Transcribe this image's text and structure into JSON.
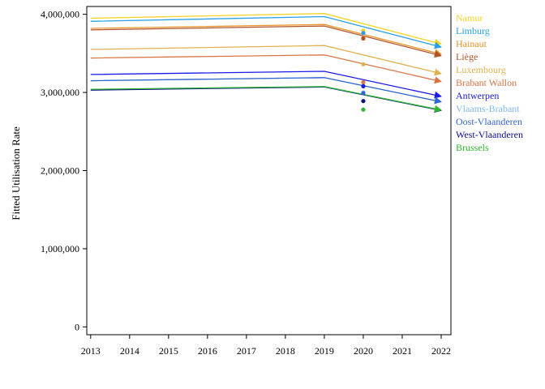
{
  "chart_data": {
    "type": "line",
    "title": "",
    "xlabel": "",
    "ylabel": "Fitted Utilisation Rate",
    "x_ticks": [
      "2013",
      "2014",
      "2015",
      "2016",
      "2017",
      "2018",
      "2019",
      "2020",
      "2021",
      "2022"
    ],
    "y_ticks": [
      "0",
      "1,000,000",
      "2,000,000",
      "3,000,000",
      "4,000,000"
    ],
    "xlim": [
      2012.9,
      2022.25
    ],
    "ylim": [
      -100000,
      4100000
    ],
    "grid": false,
    "legend_position": "right",
    "series": [
      {
        "name": "Namur",
        "color": "#f5d327",
        "x": [
          2013,
          2019,
          2022
        ],
        "y": [
          3950000,
          4010000,
          3620000
        ],
        "observed_2020": 3790000
      },
      {
        "name": "Limburg",
        "color": "#2b9fe6",
        "x": [
          2013,
          2019,
          2022
        ],
        "y": [
          3910000,
          3970000,
          3580000
        ],
        "observed_2020": 3760000
      },
      {
        "name": "Hainaut",
        "color": "#e8942a",
        "x": [
          2013,
          2019,
          2022
        ],
        "y": [
          3820000,
          3870000,
          3490000
        ],
        "observed_2020": 3700000
      },
      {
        "name": "Liège",
        "color": "#b0532a",
        "x": [
          2013,
          2019,
          2022
        ],
        "y": [
          3800000,
          3850000,
          3470000
        ],
        "observed_2020": 3690000
      },
      {
        "name": "Luxembourg",
        "color": "#e0b252",
        "x": [
          2013,
          2019,
          2022
        ],
        "y": [
          3550000,
          3600000,
          3240000
        ],
        "observed_2020": 3360000
      },
      {
        "name": "Brabant Wallon",
        "color": "#d97545",
        "x": [
          2013,
          2019,
          2022
        ],
        "y": [
          3440000,
          3480000,
          3140000
        ],
        "observed_2020": 3130000
      },
      {
        "name": "Antwerpen",
        "color": "#1a1ae8",
        "x": [
          2013,
          2019,
          2022
        ],
        "y": [
          3230000,
          3270000,
          2950000
        ],
        "observed_2020": 3080000
      },
      {
        "name": "Vlaams-Brabant",
        "color": "#7fb8ee",
        "x": [
          2013,
          2019,
          2022
        ],
        "y": [
          3150000,
          3190000,
          2880000
        ],
        "observed_2020": 3000000
      },
      {
        "name": "Oost-Vlaanderen",
        "color": "#3366cc",
        "x": [
          2013,
          2019,
          2022
        ],
        "y": [
          3150000,
          3190000,
          2880000
        ],
        "observed_2020": 2990000
      },
      {
        "name": "West-Vlaanderen",
        "color": "#0d0d8c",
        "x": [
          2013,
          2019,
          2022
        ],
        "y": [
          3030000,
          3070000,
          2770000
        ],
        "observed_2020": 2890000
      },
      {
        "name": "Brussels",
        "color": "#2eb82e",
        "x": [
          2013,
          2019,
          2022
        ],
        "y": [
          3040000,
          3075000,
          2775000
        ],
        "observed_2020": 2780000
      }
    ]
  }
}
